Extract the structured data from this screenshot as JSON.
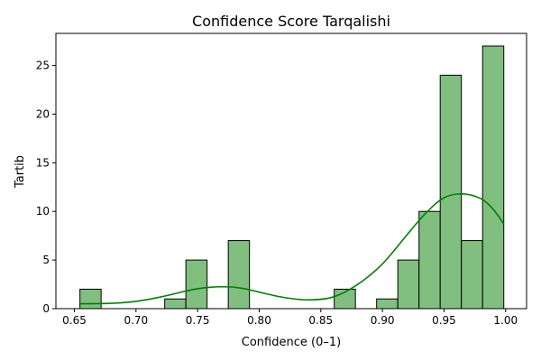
{
  "chart_data": {
    "type": "bar",
    "title": "Confidence Score Tarqalishi",
    "xlabel": "Confidence (0–1)",
    "ylabel": "Tartib",
    "xlim": [
      0.635,
      1.017
    ],
    "ylim": [
      0,
      28.3
    ],
    "xticks": [
      0.65,
      0.7,
      0.75,
      0.8,
      0.85,
      0.9,
      0.95,
      1.0
    ],
    "xtick_labels": [
      "0.65",
      "0.70",
      "0.75",
      "0.80",
      "0.85",
      "0.90",
      "0.95",
      "1.00"
    ],
    "yticks": [
      0,
      5,
      10,
      15,
      20,
      25
    ],
    "ytick_labels": [
      "0",
      "5",
      "10",
      "15",
      "20",
      "25"
    ],
    "bin_edges": [
      0.6545,
      0.6717,
      0.6889,
      0.7061,
      0.7233,
      0.7405,
      0.7577,
      0.7749,
      0.7921,
      0.8093,
      0.8265,
      0.8437,
      0.8609,
      0.8781,
      0.8953,
      0.9125,
      0.9297,
      0.9469,
      0.9641,
      0.9813,
      0.9985
    ],
    "counts": [
      2,
      0,
      0,
      0,
      1,
      5,
      0,
      7,
      0,
      0,
      0,
      0,
      2,
      0,
      1,
      5,
      10,
      24,
      7,
      27
    ],
    "kde": {
      "x": [
        0.655,
        0.68,
        0.7,
        0.72,
        0.74,
        0.75,
        0.76,
        0.77,
        0.78,
        0.79,
        0.8,
        0.82,
        0.84,
        0.86,
        0.88,
        0.9,
        0.92,
        0.935,
        0.95,
        0.965,
        0.98,
        0.99,
        0.9985
      ],
      "y": [
        0.5,
        0.55,
        0.75,
        1.2,
        1.8,
        2.05,
        2.2,
        2.25,
        2.2,
        2.0,
        1.7,
        1.15,
        0.9,
        1.2,
        2.5,
        4.6,
        7.6,
        9.8,
        11.4,
        11.8,
        11.3,
        10.2,
        8.7
      ]
    },
    "bar_color": "#80bf80",
    "bar_edge_color": "#000000",
    "kde_color": "#008000",
    "grid": false,
    "legend": "none"
  }
}
